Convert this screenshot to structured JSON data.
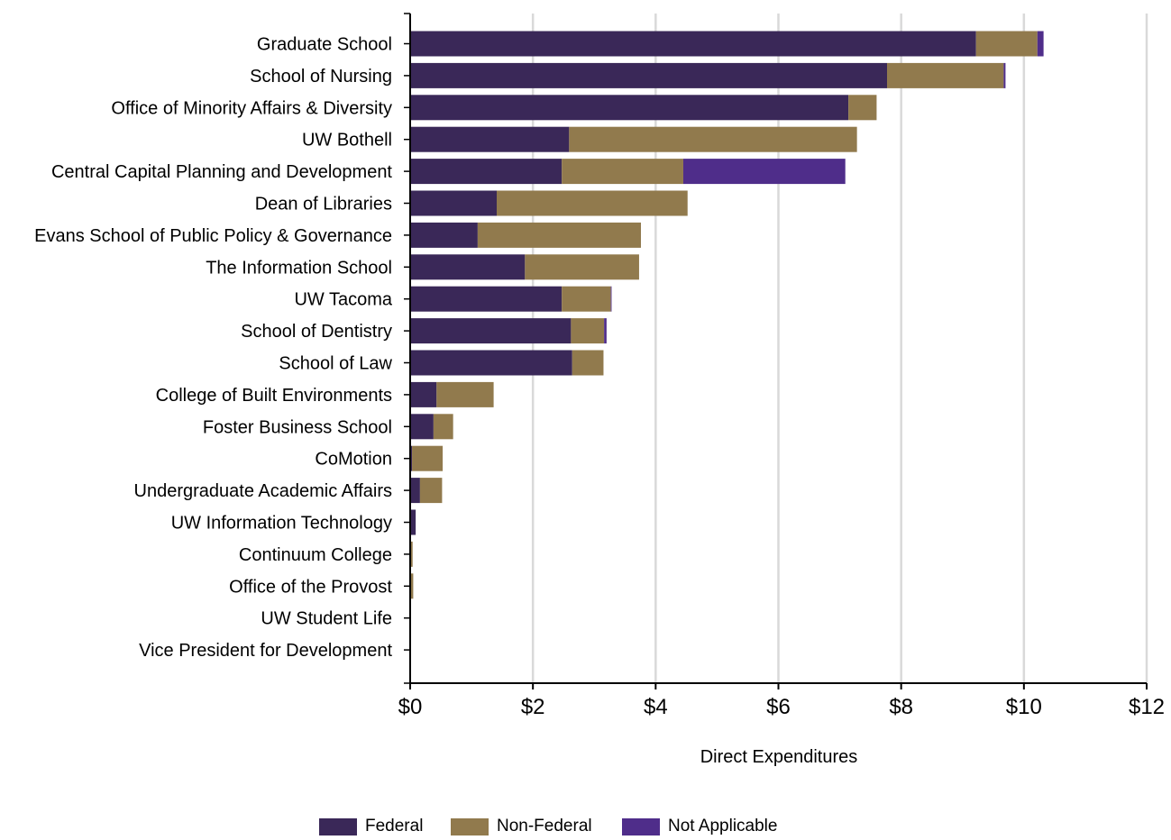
{
  "chart_data": {
    "type": "bar",
    "orientation": "horizontal",
    "stacked": true,
    "title": "",
    "xlabel": "Direct Expenditures",
    "ylabel": "",
    "xlim": [
      0,
      12
    ],
    "x_ticks": [
      "$0",
      "$2",
      "$4",
      "$6",
      "$8",
      "$10",
      "$12"
    ],
    "grid": "vertical",
    "legend_position": "bottom",
    "categories": [
      "Graduate School",
      "School of Nursing",
      "Office of Minority Affairs & Diversity",
      "UW Bothell",
      "Central Capital Planning and Development",
      "Dean of Libraries",
      "Evans School of Public Policy & Governance",
      "The Information School",
      "UW Tacoma",
      "School of Dentistry",
      "School of Law",
      "College of Built Environments",
      "Foster Business School",
      "CoMotion",
      "Undergraduate Academic Affairs",
      "UW Information Technology",
      "Continuum College",
      "Office of the Provost",
      "UW Student Life",
      "Vice President for Development"
    ],
    "series": [
      {
        "name": "Federal",
        "color": "#3a2858",
        "values": [
          9.22,
          7.77,
          7.14,
          2.59,
          2.47,
          1.41,
          1.1,
          1.87,
          2.47,
          2.62,
          2.64,
          0.43,
          0.38,
          0.03,
          0.16,
          0.09,
          0.0,
          0.0,
          0.0,
          0.0
        ]
      },
      {
        "name": "Non-Federal",
        "color": "#917a4d",
        "values": [
          1.0,
          1.9,
          0.46,
          4.69,
          1.98,
          3.11,
          2.66,
          1.86,
          0.8,
          0.54,
          0.51,
          0.93,
          0.32,
          0.5,
          0.36,
          0.0,
          0.04,
          0.05,
          0.0,
          0.0
        ]
      },
      {
        "name": "Not Applicable",
        "color": "#4f2d8a",
        "values": [
          0.1,
          0.03,
          0.0,
          0.0,
          2.64,
          0.0,
          0.0,
          0.0,
          0.01,
          0.04,
          0.0,
          0.0,
          0.0,
          0.0,
          0.0,
          0.0,
          0.0,
          0.0,
          0.0,
          0.0
        ]
      }
    ]
  }
}
